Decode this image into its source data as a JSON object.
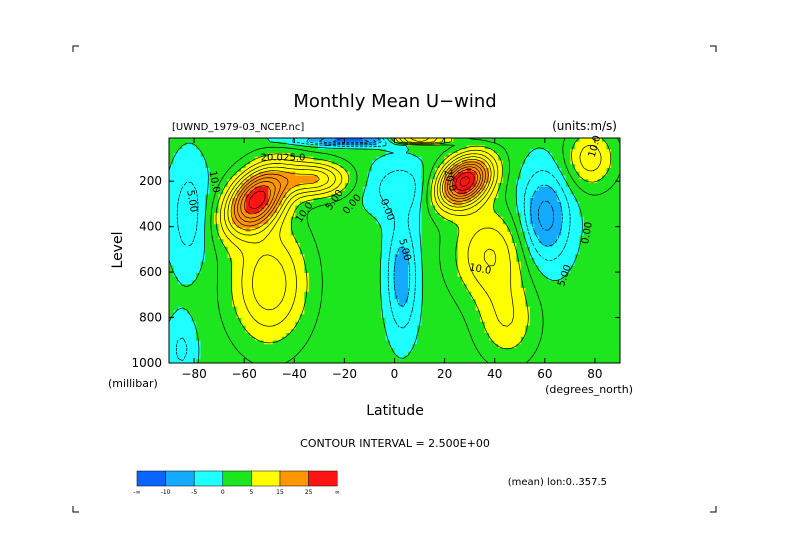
{
  "chart_data": {
    "type": "heatmap",
    "title": "Monthly Mean U−wind",
    "dataset_label": "[UWND_1979-03_NCEP.nc]",
    "units_label": "(units:m/s)",
    "xlabel": "Latitude",
    "ylabel": "Level",
    "x_unit_label": "(degrees_north)",
    "y_unit_label": "(millibar)",
    "xlim": [
      -90,
      90
    ],
    "ylim": [
      1000,
      10
    ],
    "x_ticks": [
      -80,
      -60,
      -40,
      -20,
      0,
      20,
      40,
      60,
      80
    ],
    "x_tick_labels": [
      "−80",
      "−60",
      "−40",
      "−20",
      "0",
      "20",
      "40",
      "60",
      "80"
    ],
    "y_ticks": [
      200,
      400,
      600,
      800,
      1000
    ],
    "y_tick_labels": [
      "200",
      "400",
      "600",
      "800",
      "1000"
    ],
    "contour_interval_text": "CONTOUR INTERVAL = 2.500E+00",
    "footer_note": "(mean) lon:0..357.5",
    "colorbar": {
      "colors": [
        "#0a64ff",
        "#14aaff",
        "#1effff",
        "#1ee61e",
        "#ffff00",
        "#ff9600",
        "#ff1414"
      ],
      "tick_labels": [
        "-∞",
        "-10",
        "-5",
        "0",
        "5",
        "15",
        "25",
        "∞"
      ]
    },
    "contour_labels": [
      "20.0",
      "25.0",
      "10.0",
      "5.00",
      "10.0",
      "5.00",
      "0.00",
      "0.00",
      "5.00",
      "20.0",
      "10.0",
      "5.00",
      "0.00",
      "10.0"
    ],
    "jets": [
      {
        "lat": -55,
        "level": 280,
        "peak": 27
      },
      {
        "lat": 28,
        "level": 200,
        "peak": 30
      }
    ]
  }
}
